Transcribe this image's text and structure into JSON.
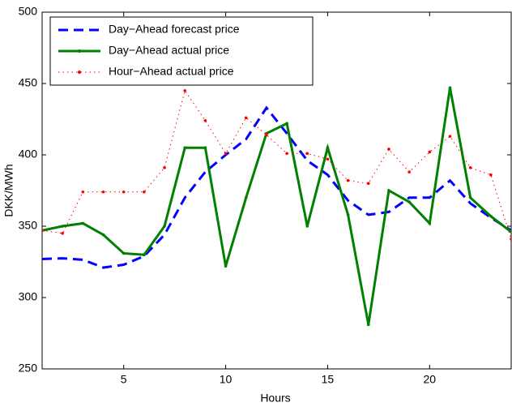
{
  "chart_data": {
    "type": "line",
    "x": [
      1,
      2,
      3,
      4,
      5,
      6,
      7,
      8,
      9,
      10,
      11,
      12,
      13,
      14,
      15,
      16,
      17,
      18,
      19,
      20,
      21,
      22,
      23,
      24
    ],
    "xlim": [
      1,
      24
    ],
    "xticks": [
      5,
      10,
      15,
      20
    ],
    "ylim": [
      250,
      500
    ],
    "yticks": [
      250,
      300,
      350,
      400,
      450,
      500
    ],
    "xlabel": "Hours",
    "ylabel": "DKK/MWh",
    "legend": "upper-left",
    "grid": false,
    "series": [
      {
        "name": "Day−Ahead forecast price",
        "color": "#0000ff",
        "style": "dashed",
        "values": [
          327,
          327.5,
          326.5,
          321,
          323,
          329,
          344,
          370,
          388,
          400,
          411,
          433,
          415,
          396,
          386,
          368,
          358,
          360,
          370,
          370,
          382,
          366,
          356,
          347
        ]
      },
      {
        "name": "Day−Ahead actual price",
        "color": "#008000",
        "style": "solid",
        "values": [
          347,
          350,
          352,
          344,
          331,
          330,
          350,
          405,
          405,
          322,
          370,
          415,
          422,
          350,
          405,
          358,
          281,
          375,
          367,
          352,
          447,
          370,
          357,
          346
        ]
      },
      {
        "name": "Hour−Ahead actual price",
        "color": "#ff0000",
        "style": "dotted",
        "values": [
          347,
          345,
          374,
          374,
          374,
          374,
          391,
          445,
          424,
          401,
          426,
          414,
          401,
          401,
          397,
          382,
          380,
          404,
          388,
          402,
          413,
          391,
          386,
          341
        ]
      }
    ]
  }
}
